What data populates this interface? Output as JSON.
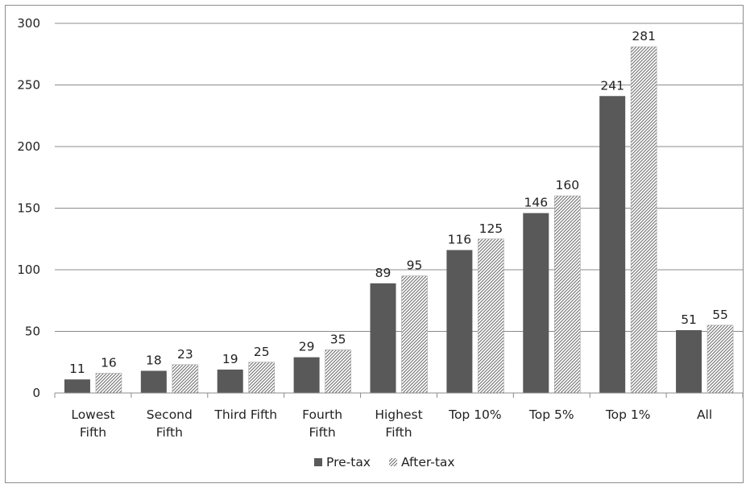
{
  "chart_data": {
    "type": "bar",
    "title": "",
    "xlabel": "",
    "ylabel": "",
    "categories": [
      [
        "Lowest",
        "Fifth"
      ],
      [
        "Second",
        "Fifth"
      ],
      [
        "Third Fifth"
      ],
      [
        "Fourth",
        "Fifth"
      ],
      [
        "Highest",
        "Fifth"
      ],
      [
        "Top 10%"
      ],
      [
        "Top 5%"
      ],
      [
        "Top 1%"
      ],
      [
        "All"
      ]
    ],
    "series": [
      {
        "name": "Pre-tax",
        "values": [
          11,
          18,
          19,
          29,
          89,
          116,
          146,
          241,
          51
        ],
        "color": "#595959",
        "fill": "solid"
      },
      {
        "name": "After-tax",
        "values": [
          16,
          23,
          25,
          35,
          95,
          125,
          160,
          281,
          55
        ],
        "color": "#7f7f7f",
        "fill": "diagonal-hatch"
      }
    ],
    "ylim": [
      0,
      300
    ],
    "yticks": [
      0,
      50,
      100,
      150,
      200,
      250,
      300
    ],
    "grid": true,
    "legend": "bottom-center",
    "data_labels": true
  }
}
